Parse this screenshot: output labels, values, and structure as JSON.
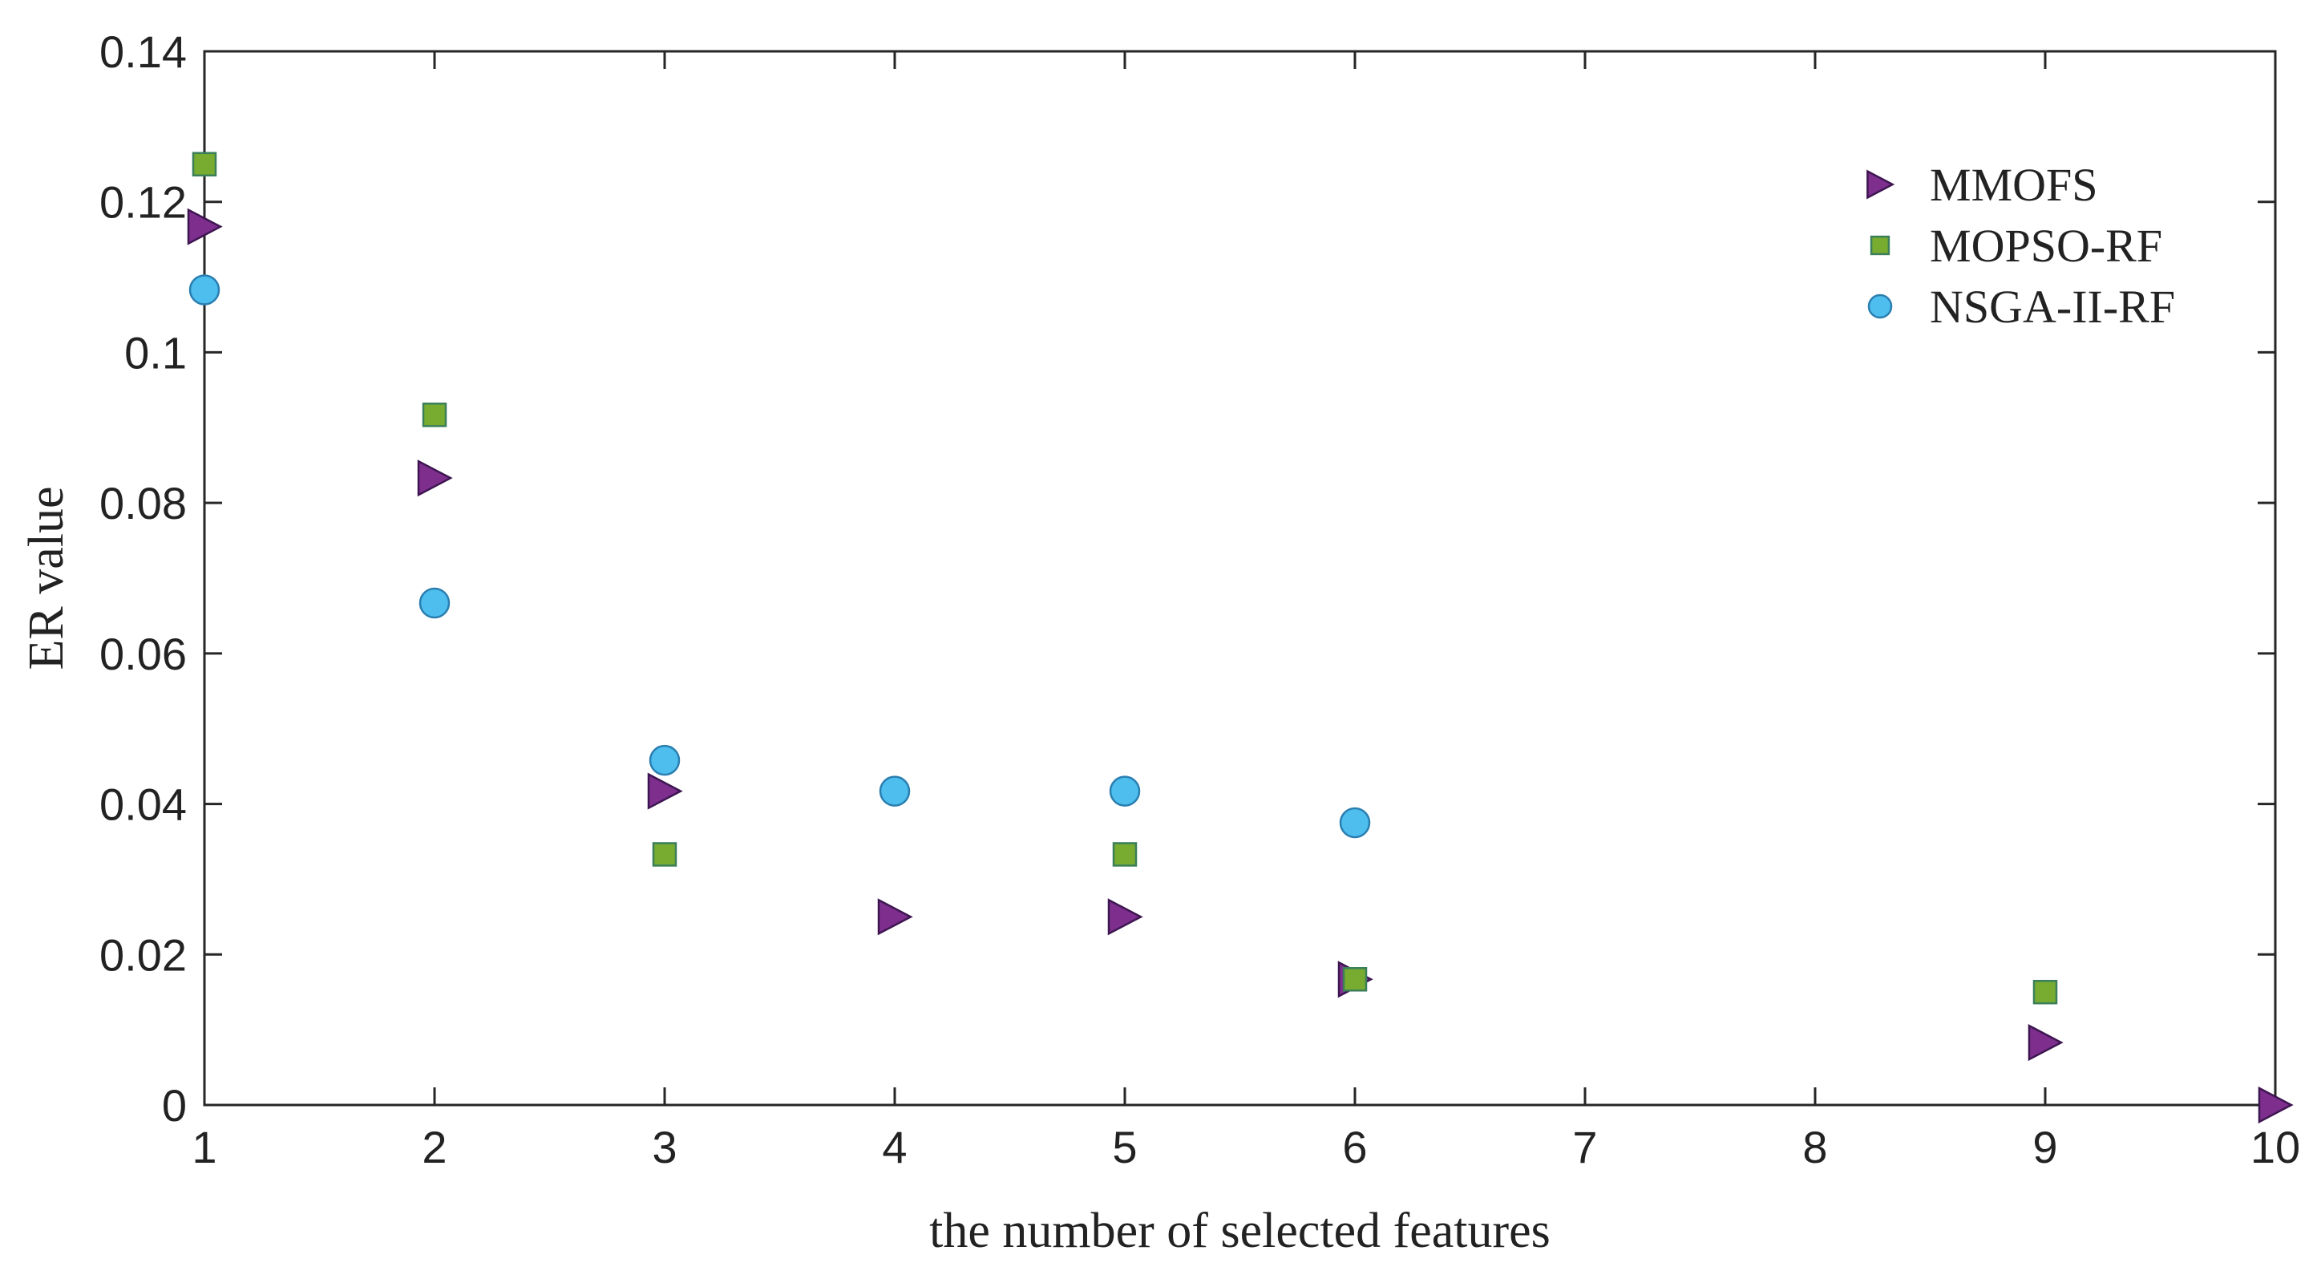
{
  "chart_data": {
    "type": "scatter",
    "xlabel": "the number of selected features",
    "ylabel": "ER value",
    "xlim": [
      1,
      10
    ],
    "ylim": [
      0,
      0.14
    ],
    "x_ticks": [
      1,
      2,
      3,
      4,
      5,
      6,
      7,
      8,
      9,
      10
    ],
    "y_ticks": [
      0,
      0.02,
      0.04,
      0.06,
      0.08,
      0.1,
      0.12,
      0.14
    ],
    "y_tick_labels": [
      "0",
      "0.02",
      "0.04",
      "0.06",
      "0.08",
      "0.1",
      "0.12",
      "0.14"
    ],
    "grid": false,
    "legend_position": "top-right",
    "series": [
      {
        "name": "MMOFS",
        "marker": "triangle-right",
        "color": "#7E2F8E",
        "points": [
          {
            "x": 1,
            "y": 0.1167
          },
          {
            "x": 2,
            "y": 0.0833
          },
          {
            "x": 3,
            "y": 0.0417
          },
          {
            "x": 4,
            "y": 0.025
          },
          {
            "x": 5,
            "y": 0.025
          },
          {
            "x": 6,
            "y": 0.0167
          },
          {
            "x": 9,
            "y": 0.0083
          },
          {
            "x": 10,
            "y": 0
          }
        ]
      },
      {
        "name": "MOPSO-RF",
        "marker": "square",
        "color": "#77AC30",
        "points": [
          {
            "x": 1,
            "y": 0.125
          },
          {
            "x": 2,
            "y": 0.0917
          },
          {
            "x": 3,
            "y": 0.0333
          },
          {
            "x": 5,
            "y": 0.0333
          },
          {
            "x": 6,
            "y": 0.0167
          },
          {
            "x": 9,
            "y": 0.015
          }
        ]
      },
      {
        "name": "NSGA-II-RF",
        "marker": "circle",
        "color": "#4DBEEE",
        "points": [
          {
            "x": 1,
            "y": 0.1083
          },
          {
            "x": 2,
            "y": 0.0667
          },
          {
            "x": 3,
            "y": 0.0458
          },
          {
            "x": 4,
            "y": 0.0417
          },
          {
            "x": 5,
            "y": 0.0417
          },
          {
            "x": 6,
            "y": 0.0375
          }
        ]
      }
    ]
  }
}
